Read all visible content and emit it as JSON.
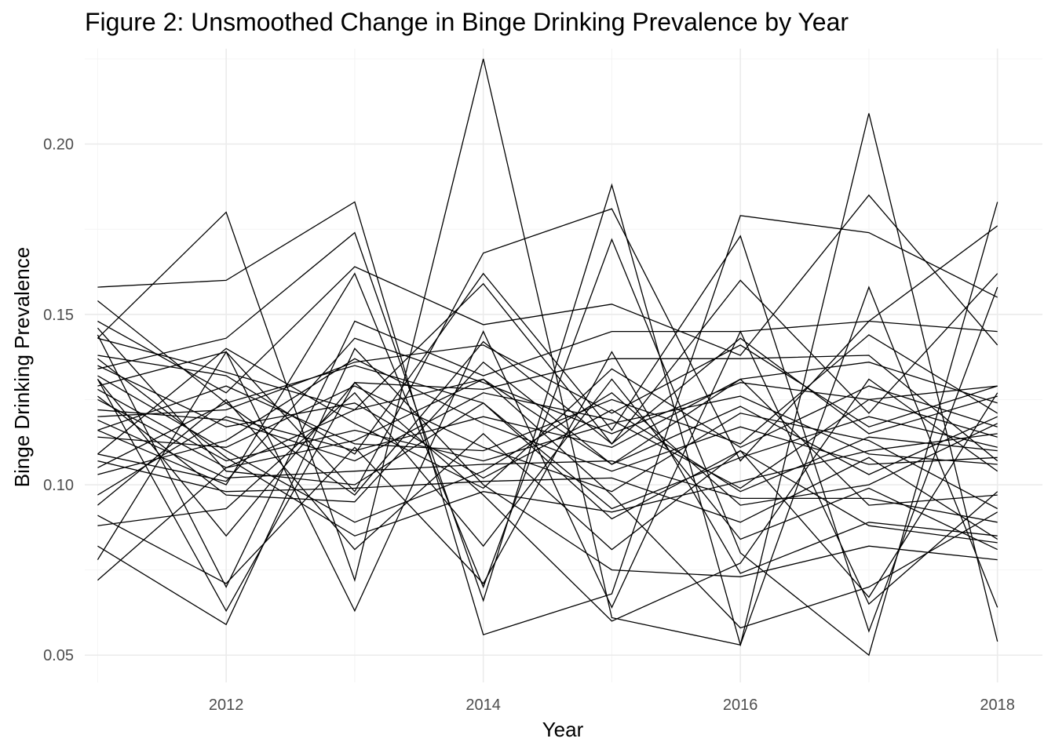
{
  "chart_data": {
    "type": "line",
    "title": "Figure 2: Unsmoothed Change in Binge Drinking Prevalence by Year",
    "xlabel": "Year",
    "ylabel": "Binge Drinking Prevalence",
    "x": [
      2011,
      2012,
      2013,
      2014,
      2015,
      2016,
      2017,
      2018
    ],
    "xlim": [
      2010.9,
      2018.35
    ],
    "ylim": [
      0.042,
      0.228
    ],
    "x_ticks": [
      "2012",
      "2014",
      "2016",
      "2018"
    ],
    "y_ticks": [
      "0.05",
      "0.10",
      "0.15",
      "0.20"
    ],
    "grid": true,
    "legend": "none",
    "line_color": "#000000",
    "series": [
      {
        "values": [
          0.158,
          0.16,
          0.183,
          0.056,
          0.068,
          0.179,
          0.174,
          0.155
        ]
      },
      {
        "values": [
          0.143,
          0.18,
          0.072,
          0.225,
          0.061,
          0.053,
          0.209,
          0.054
        ]
      },
      {
        "values": [
          0.148,
          0.127,
          0.164,
          0.147,
          0.153,
          0.138,
          0.185,
          0.141
        ]
      },
      {
        "values": [
          0.134,
          0.143,
          0.174,
          0.066,
          0.188,
          0.053,
          0.158,
          0.064
        ]
      },
      {
        "values": [
          0.129,
          0.139,
          0.098,
          0.168,
          0.181,
          0.107,
          0.148,
          0.176
        ]
      },
      {
        "values": [
          0.116,
          0.1,
          0.162,
          0.07,
          0.172,
          0.08,
          0.05,
          0.183
        ]
      },
      {
        "values": [
          0.138,
          0.132,
          0.109,
          0.162,
          0.116,
          0.173,
          0.057,
          0.158
        ]
      },
      {
        "values": [
          0.144,
          0.07,
          0.148,
          0.132,
          0.145,
          0.145,
          0.148,
          0.145
        ]
      },
      {
        "values": [
          0.125,
          0.105,
          0.122,
          0.159,
          0.112,
          0.16,
          0.121,
          0.162
        ]
      },
      {
        "values": [
          0.131,
          0.085,
          0.13,
          0.128,
          0.137,
          0.137,
          0.138,
          0.107
        ]
      },
      {
        "values": [
          0.12,
          0.122,
          0.136,
          0.141,
          0.121,
          0.141,
          0.117,
          0.129
        ]
      },
      {
        "values": [
          0.109,
          0.101,
          0.143,
          0.13,
          0.115,
          0.13,
          0.125,
          0.129
        ]
      },
      {
        "values": [
          0.154,
          0.124,
          0.097,
          0.142,
          0.112,
          0.143,
          0.115,
          0.126
        ]
      },
      {
        "values": [
          0.143,
          0.133,
          0.122,
          0.131,
          0.106,
          0.131,
          0.136,
          0.124
        ]
      },
      {
        "values": [
          0.116,
          0.129,
          0.112,
          0.11,
          0.125,
          0.112,
          0.144,
          0.121
        ]
      },
      {
        "values": [
          0.109,
          0.14,
          0.118,
          0.099,
          0.134,
          0.111,
          0.129,
          0.117
        ]
      },
      {
        "values": [
          0.122,
          0.119,
          0.107,
          0.127,
          0.119,
          0.099,
          0.125,
          0.114
        ]
      },
      {
        "values": [
          0.135,
          0.117,
          0.124,
          0.102,
          0.122,
          0.098,
          0.114,
          0.11
        ]
      },
      {
        "values": [
          0.103,
          0.113,
          0.137,
          0.118,
          0.104,
          0.117,
          0.106,
          0.108
        ]
      },
      {
        "values": [
          0.128,
          0.107,
          0.116,
          0.107,
          0.118,
          0.126,
          0.109,
          0.106
        ]
      },
      {
        "values": [
          0.097,
          0.12,
          0.11,
          0.12,
          0.111,
          0.131,
          0.094,
          0.097
        ]
      },
      {
        "values": [
          0.114,
          0.111,
          0.129,
          0.111,
          0.098,
          0.121,
          0.113,
          0.093
        ]
      },
      {
        "values": [
          0.146,
          0.104,
          0.1,
          0.124,
          0.093,
          0.108,
          0.12,
          0.111
        ]
      },
      {
        "values": [
          0.126,
          0.097,
          0.095,
          0.136,
          0.106,
          0.123,
          0.103,
          0.12
        ]
      },
      {
        "values": [
          0.132,
          0.11,
          0.089,
          0.104,
          0.127,
          0.094,
          0.1,
          0.118
        ]
      },
      {
        "values": [
          0.137,
          0.108,
          0.085,
          0.098,
          0.092,
          0.101,
          0.11,
          0.115
        ]
      },
      {
        "values": [
          0.119,
          0.102,
          0.104,
          0.106,
          0.107,
          0.096,
          0.096,
          0.089
        ]
      },
      {
        "values": [
          0.107,
          0.098,
          0.099,
          0.101,
          0.102,
          0.089,
          0.108,
          0.084
        ]
      },
      {
        "values": [
          0.088,
          0.093,
          0.127,
          0.082,
          0.131,
          0.084,
          0.099,
          0.081
        ]
      },
      {
        "values": [
          0.094,
          0.125,
          0.081,
          0.115,
          0.081,
          0.11,
          0.088,
          0.083
        ]
      },
      {
        "values": [
          0.091,
          0.071,
          0.111,
          0.071,
          0.139,
          0.074,
          0.089,
          0.085
        ]
      },
      {
        "values": [
          0.072,
          0.105,
          0.113,
          0.131,
          0.097,
          0.058,
          0.07,
          0.092
        ]
      },
      {
        "values": [
          0.078,
          0.139,
          0.063,
          0.145,
          0.064,
          0.145,
          0.065,
          0.098
        ]
      },
      {
        "values": [
          0.082,
          0.059,
          0.14,
          0.1,
          0.075,
          0.073,
          0.082,
          0.078
        ]
      },
      {
        "values": [
          0.131,
          0.063,
          0.13,
          0.097,
          0.06,
          0.077,
          0.131,
          0.104
        ]
      },
      {
        "values": [
          0.105,
          0.124,
          0.135,
          0.124,
          0.09,
          0.11,
          0.067,
          0.127
        ]
      }
    ]
  }
}
